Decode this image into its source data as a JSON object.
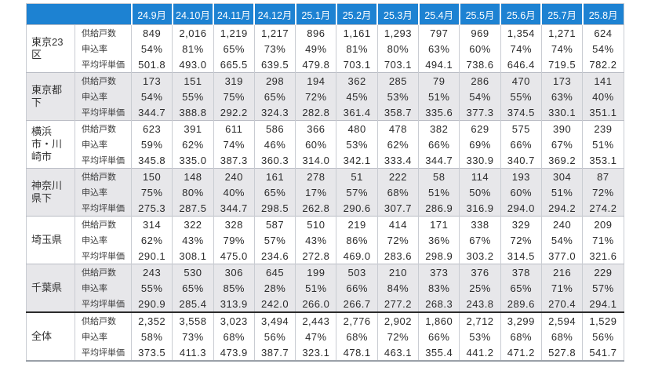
{
  "table": {
    "columns": [
      "24.9月",
      "24.10月",
      "24.11月",
      "24.12月",
      "25.1月",
      "25.2月",
      "25.3月",
      "25.4月",
      "25.5月",
      "25.6月",
      "25.7月",
      "25.8月"
    ],
    "metrics": [
      "供給戸数",
      "申込率",
      "平均坪単価"
    ],
    "groups": [
      {
        "region": "東京23区",
        "shaded": false,
        "is_total": false,
        "values": [
          [
            "849",
            "2,016",
            "1,219",
            "1,217",
            "896",
            "1,161",
            "1,293",
            "797",
            "969",
            "1,354",
            "1,271",
            "624"
          ],
          [
            "54%",
            "81%",
            "65%",
            "73%",
            "49%",
            "81%",
            "80%",
            "63%",
            "60%",
            "74%",
            "74%",
            "54%"
          ],
          [
            "501.8",
            "493.0",
            "665.5",
            "639.5",
            "479.8",
            "703.1",
            "703.1",
            "494.1",
            "738.6",
            "646.4",
            "719.5",
            "782.2"
          ]
        ]
      },
      {
        "region": "東京都下",
        "shaded": true,
        "is_total": false,
        "values": [
          [
            "173",
            "151",
            "319",
            "298",
            "194",
            "362",
            "285",
            "79",
            "286",
            "470",
            "173",
            "141"
          ],
          [
            "54%",
            "55%",
            "75%",
            "65%",
            "72%",
            "45%",
            "53%",
            "51%",
            "54%",
            "55%",
            "63%",
            "40%"
          ],
          [
            "344.7",
            "388.8",
            "292.2",
            "324.3",
            "282.8",
            "361.4",
            "358.7",
            "335.6",
            "377.3",
            "374.5",
            "330.1",
            "351.1"
          ]
        ]
      },
      {
        "region": "横浜市・川崎市",
        "shaded": false,
        "is_total": false,
        "values": [
          [
            "623",
            "391",
            "611",
            "586",
            "366",
            "480",
            "478",
            "382",
            "629",
            "575",
            "390",
            "239"
          ],
          [
            "59%",
            "62%",
            "74%",
            "46%",
            "60%",
            "53%",
            "62%",
            "66%",
            "69%",
            "66%",
            "67%",
            "51%"
          ],
          [
            "345.8",
            "335.0",
            "387.3",
            "360.3",
            "314.0",
            "342.1",
            "333.4",
            "344.7",
            "330.9",
            "340.7",
            "369.2",
            "353.1"
          ]
        ]
      },
      {
        "region": "神奈川県下",
        "shaded": true,
        "is_total": false,
        "values": [
          [
            "150",
            "148",
            "240",
            "161",
            "278",
            "51",
            "222",
            "58",
            "114",
            "193",
            "304",
            "87"
          ],
          [
            "75%",
            "80%",
            "40%",
            "65%",
            "17%",
            "57%",
            "68%",
            "51%",
            "50%",
            "60%",
            "51%",
            "72%"
          ],
          [
            "275.3",
            "287.5",
            "344.7",
            "298.5",
            "262.8",
            "290.6",
            "307.7",
            "286.9",
            "316.9",
            "294.0",
            "294.2",
            "274.2"
          ]
        ]
      },
      {
        "region": "埼玉県",
        "shaded": false,
        "is_total": false,
        "values": [
          [
            "314",
            "322",
            "328",
            "587",
            "510",
            "219",
            "414",
            "171",
            "338",
            "329",
            "240",
            "209"
          ],
          [
            "62%",
            "43%",
            "79%",
            "57%",
            "43%",
            "86%",
            "72%",
            "36%",
            "67%",
            "72%",
            "54%",
            "71%"
          ],
          [
            "290.1",
            "308.1",
            "475.0",
            "234.6",
            "272.8",
            "469.0",
            "283.6",
            "298.9",
            "303.2",
            "314.5",
            "377.0",
            "321.6"
          ]
        ]
      },
      {
        "region": "千葉県",
        "shaded": true,
        "is_total": false,
        "values": [
          [
            "243",
            "530",
            "306",
            "645",
            "199",
            "503",
            "210",
            "373",
            "376",
            "378",
            "216",
            "229"
          ],
          [
            "55%",
            "65%",
            "85%",
            "28%",
            "51%",
            "66%",
            "84%",
            "83%",
            "25%",
            "65%",
            "71%",
            "57%"
          ],
          [
            "290.9",
            "285.4",
            "313.9",
            "242.0",
            "266.0",
            "266.7",
            "277.2",
            "268.3",
            "243.8",
            "289.6",
            "270.4",
            "294.1"
          ]
        ]
      },
      {
        "region": "全体",
        "shaded": false,
        "is_total": true,
        "values": [
          [
            "2,352",
            "3,558",
            "3,023",
            "3,494",
            "2,443",
            "2,776",
            "2,902",
            "1,860",
            "2,712",
            "3,299",
            "2,594",
            "1,529"
          ],
          [
            "58%",
            "73%",
            "68%",
            "56%",
            "47%",
            "68%",
            "72%",
            "66%",
            "53%",
            "68%",
            "68%",
            "56%"
          ],
          [
            "373.5",
            "411.3",
            "473.9",
            "387.7",
            "323.1",
            "478.1",
            "463.1",
            "355.4",
            "441.2",
            "471.2",
            "527.8",
            "541.7"
          ]
        ]
      }
    ]
  },
  "colors": {
    "header_bg": "#1d82d2",
    "header_text": "#ffffff",
    "band_bg": "#e7e7ea",
    "grid_line": "#c9ccd2",
    "group_line": "#b9bcc4",
    "total_line": "#2b2b2b"
  }
}
